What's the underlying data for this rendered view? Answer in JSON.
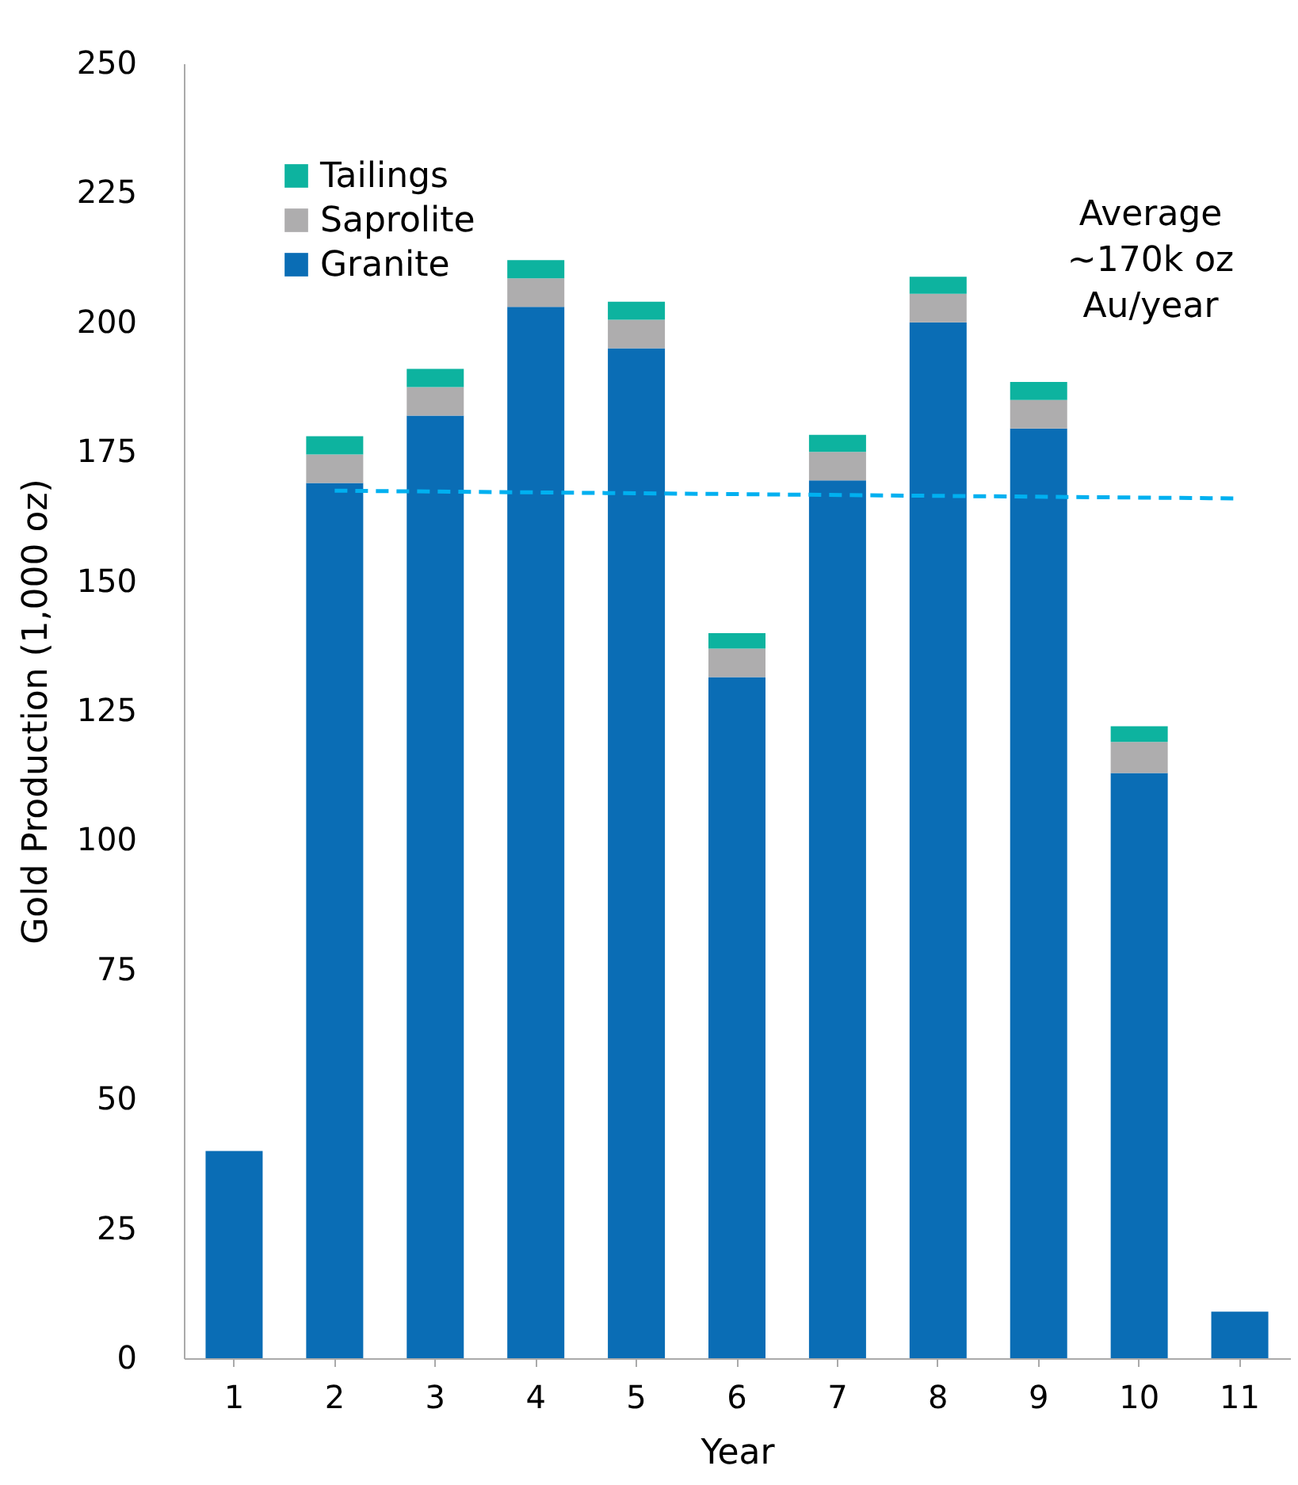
{
  "chart_data": {
    "type": "bar",
    "stacked": true,
    "xlabel": "Year",
    "ylabel": "Gold Production (1,000 oz)",
    "categories": [
      "1",
      "2",
      "3",
      "4",
      "5",
      "6",
      "7",
      "8",
      "9",
      "10",
      "11"
    ],
    "series": [
      {
        "name": "Granite",
        "color": "#0a6db5",
        "values": [
          40,
          169,
          182,
          203,
          195,
          131.5,
          169.5,
          200,
          179.5,
          113,
          9
        ]
      },
      {
        "name": "Saprolite",
        "color": "#aeadae",
        "values": [
          null,
          5.5,
          5.5,
          5.5,
          5.5,
          5.5,
          5.5,
          5.5,
          5.5,
          6,
          null
        ]
      },
      {
        "name": "Tailings",
        "color": "#0db39f",
        "values": [
          null,
          3.5,
          3.5,
          3.5,
          3.5,
          3,
          3.3,
          3.3,
          3.5,
          3,
          null
        ]
      },
      {
        "type": "line",
        "color": "#00b0f0",
        "line_style": "dashed",
        "marker": "none",
        "x": [
          "2",
          "11"
        ],
        "values": [
          167.5,
          166
        ]
      }
    ],
    "ylim": [
      0,
      250
    ],
    "yticks": [
      0,
      25,
      50,
      75,
      100,
      125,
      150,
      175,
      200,
      225,
      250
    ],
    "annotations": [
      "Average\n~170k oz\nAu/year"
    ],
    "legend": "top left",
    "grid": false
  }
}
